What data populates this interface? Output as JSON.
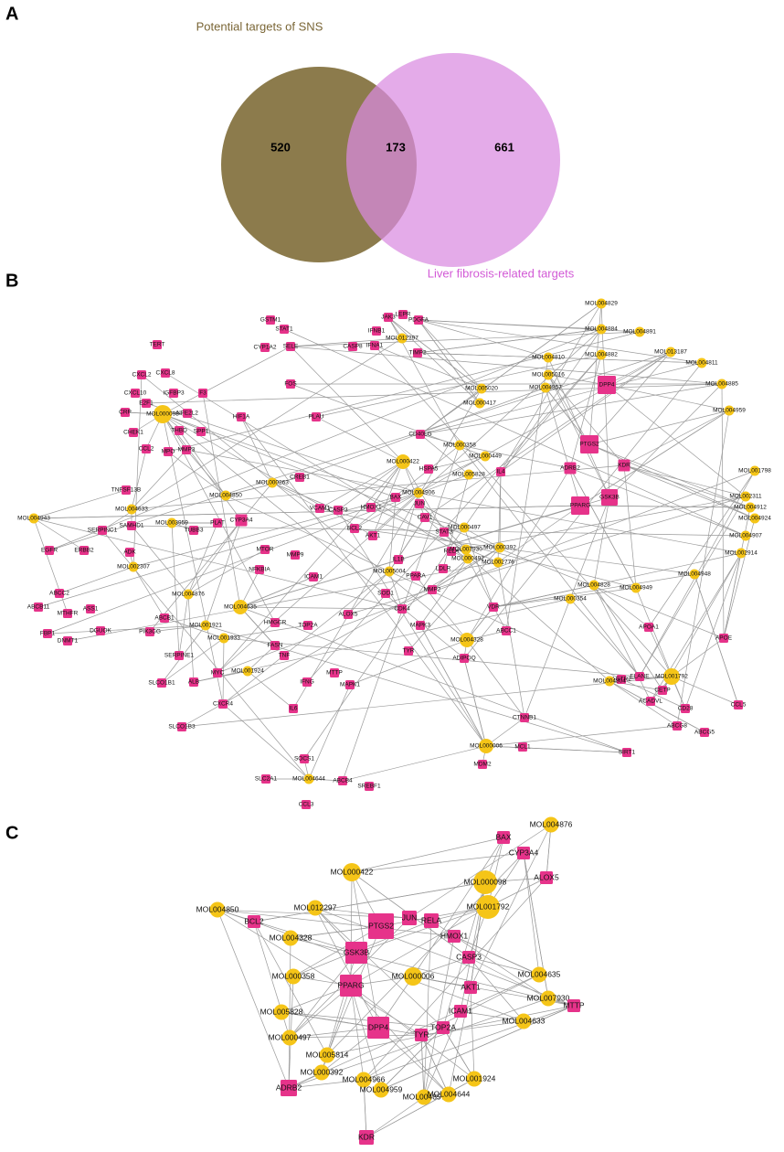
{
  "panel_a": {
    "letter": "A",
    "left_label": "Potential targets of SNS",
    "right_label": "Liver fibrosis-related targets",
    "left_only": 520,
    "overlap": 173,
    "right_only": 661
  },
  "panel_b": {
    "letter": "B",
    "nodes": [
      "GSTM1",
      "STAT1",
      "JAK3",
      "LEPR",
      "PDGFA",
      "IFNB1",
      "MOL012297",
      "SELE",
      "CYP1A2",
      "CASP8",
      "IFNA1",
      "TIMP2",
      "TERT",
      "CXCL8",
      "CXCL2",
      "IGFBP3",
      "F3",
      "CXCL10",
      "E2F1",
      "CRP",
      "MOL000098",
      "NFE2L2",
      "HIF1A",
      "PLAU",
      "FOS",
      "CHEK1",
      "CCL2",
      "THBD",
      "SPP1",
      "MPO",
      "MMP3",
      "MOL000422",
      "CD40LG",
      "HSPA5",
      "CREB1",
      "MOL000263",
      "MOL004850",
      "MOL004633",
      "TNFSF13B",
      "SERPINC1",
      "ERBB2",
      "EGFR",
      "MOL004943",
      "SAMHD1",
      "MOL003959",
      "PLAT",
      "CYP3A4",
      "TUBB3",
      "ADK",
      "MOL002307",
      "MTOR",
      "NFKBIA",
      "MMP9",
      "ICAM1",
      "MOL004876",
      "MOL004635",
      "ABCC2",
      "ABCB11",
      "MTHFR",
      "ASS1",
      "FBP1",
      "DNMT1",
      "DGUOK",
      "ABCB1",
      "PIK3CG",
      "MOL001921",
      "MOL001933",
      "HMGCR",
      "TOP2A",
      "SERPINE1",
      "FASN",
      "TNF",
      "MYC",
      "MOL001924",
      "ALB",
      "SLCO1B1",
      "CXCR4",
      "IFNG",
      "MTTP",
      "IL6",
      "SLCO1B3",
      "SOCS1",
      "MOL004644",
      "SLC2A1",
      "ABCB4",
      "SREBF1",
      "CCL3",
      "MOL000358",
      "MOL000449",
      "MOL005828",
      "IL4",
      "MOL004906",
      "BAX",
      "JUN",
      "CAV1",
      "STAT3",
      "HMOX1",
      "BCL2",
      "AKT1",
      "VCAM1",
      "CASP3",
      "RELA",
      "MOL007930",
      "MOL000497",
      "MOL000392",
      "MOL002776",
      "MOL000492",
      "LDLR",
      "PPARA",
      "MMP2",
      "IL1B",
      "MOL005004",
      "SOD1",
      "CDK4",
      "ALOX5",
      "MAPK3",
      "MOL004328",
      "ABCC1",
      "TYR",
      "ADIPOQ",
      "VDR",
      "MAPK1",
      "MOL000006",
      "MCL1",
      "MDM2",
      "CTNNB1",
      "DPP4",
      "PTGS2",
      "KDR",
      "PPARG",
      "GSK3B",
      "ADRB2",
      "MOL004891",
      "MOL004811",
      "MOL004885",
      "MOL004959",
      "MOL001798",
      "MOL002311",
      "MOL004912",
      "MOL004924",
      "MOL004907",
      "MOL002914",
      "MOL004948",
      "MOL004949",
      "MOL004828",
      "MOL000354",
      "MOL005020",
      "MOL000417",
      "MOL005016",
      "MOL004857",
      "MOL004810",
      "MOL004829",
      "MOL004882",
      "MOL004884",
      "MOL013187",
      "MOL001792",
      "APOE",
      "ELANE",
      "CETP",
      "CD28",
      "ABCG5",
      "ABCG8",
      "CCL5",
      "AGTR2",
      "APOA1",
      "ACADVL",
      "SIRT1",
      "MOL004804"
    ]
  },
  "panel_c": {
    "letter": "C",
    "nodes": [
      "BAX",
      "MOL004876",
      "CYP3A4",
      "ALOX5",
      "MOL000422",
      "MOL000098",
      "MOL001792",
      "MOL004850",
      "MOL012297",
      "BCL2",
      "PTGS2",
      "JUN",
      "RELA",
      "MOL004328",
      "HMOX1",
      "GSK3B",
      "CASP3",
      "MOL004635",
      "MOL000358",
      "MOL000006",
      "PPARG",
      "AKT1",
      "MOL007930",
      "MTTP",
      "MOL005828",
      "ICAM1",
      "MOL004633",
      "DPP4",
      "TOP2A",
      "TYR",
      "MOL000497",
      "MOL005814",
      "MOL000392",
      "MOL004966",
      "MOL004959",
      "MOL004857",
      "MOL004644",
      "MOL001924",
      "ADRB2",
      "KDR"
    ]
  }
}
